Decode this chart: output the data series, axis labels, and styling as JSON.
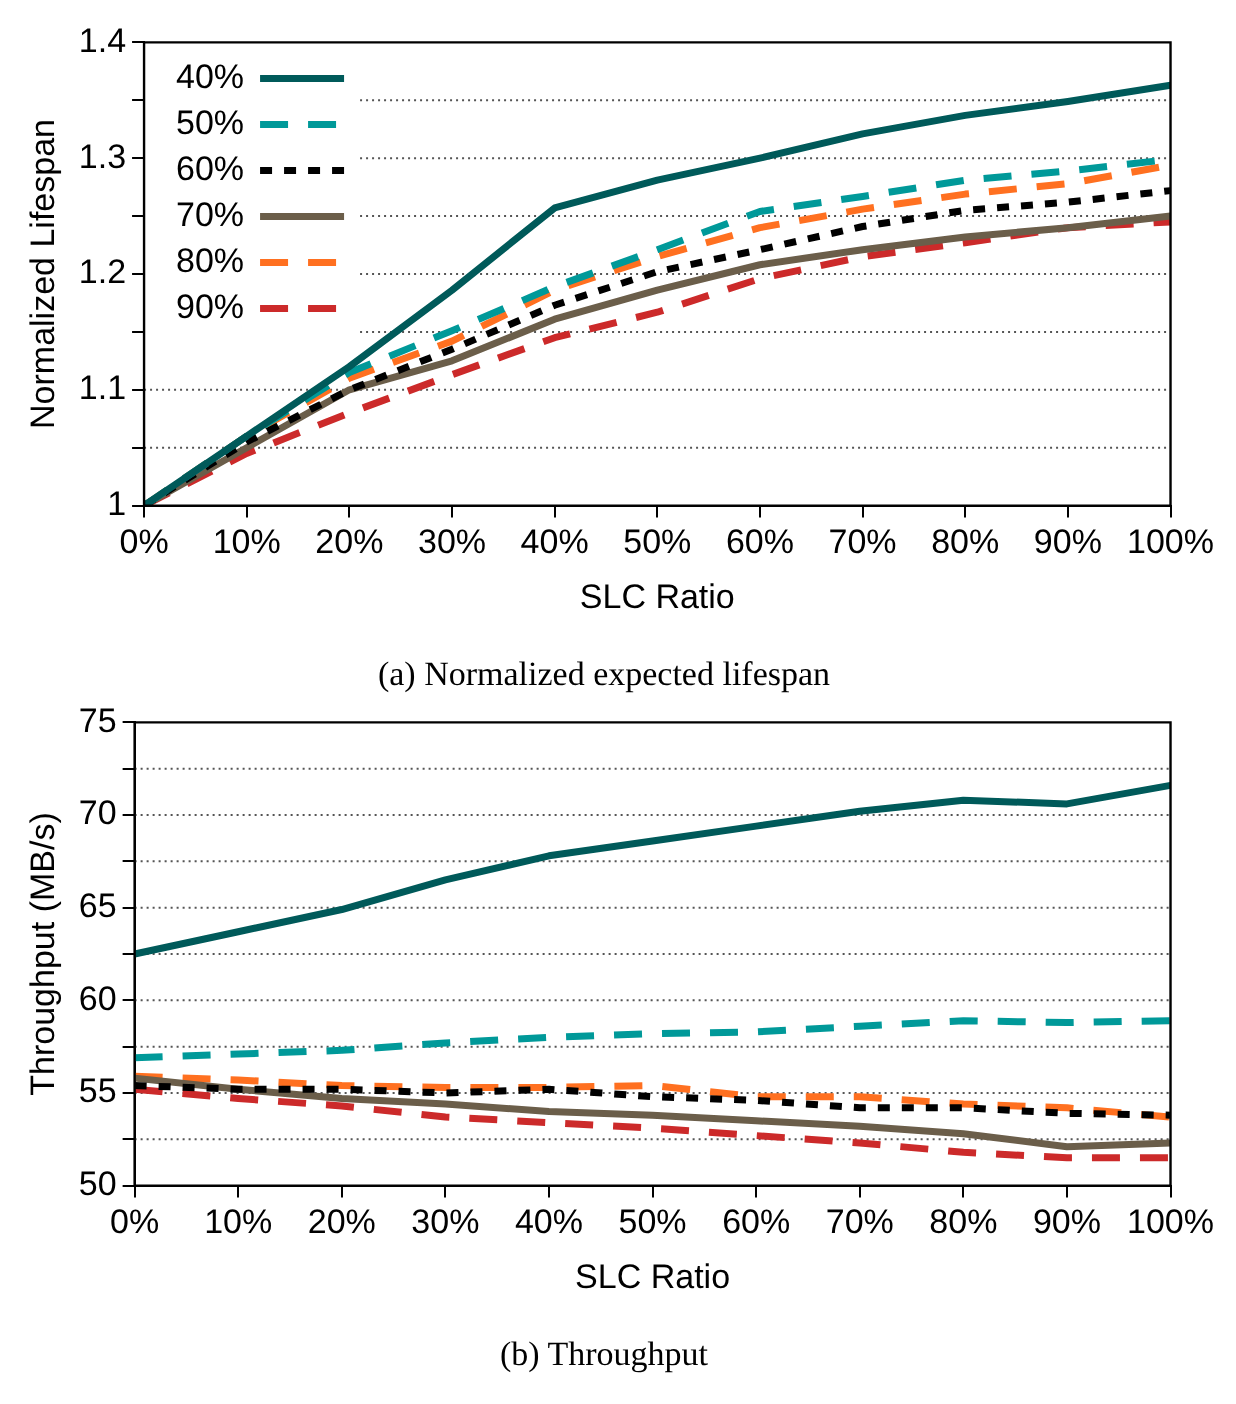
{
  "chart_data": [
    {
      "type": "line",
      "title": "(a) Normalized expected lifespan",
      "xlabel": "SLC Ratio",
      "ylabel": "Normalized Lifespan",
      "x": [
        0,
        10,
        20,
        30,
        40,
        50,
        60,
        70,
        80,
        90,
        100
      ],
      "xlim": [
        0,
        100
      ],
      "xticks": [
        {
          "value": 0,
          "label": "0%"
        },
        {
          "value": 10,
          "label": "10%"
        },
        {
          "value": 20,
          "label": "20%"
        },
        {
          "value": 30,
          "label": "30%"
        },
        {
          "value": 40,
          "label": "40%"
        },
        {
          "value": 50,
          "label": "50%"
        },
        {
          "value": 60,
          "label": "60%"
        },
        {
          "value": 70,
          "label": "70%"
        },
        {
          "value": 80,
          "label": "80%"
        },
        {
          "value": 90,
          "label": "90%"
        },
        {
          "value": 100,
          "label": "100%"
        }
      ],
      "ylim": [
        1,
        1.4
      ],
      "yticks": [
        1,
        {
          "value": 1.05,
          "label": null
        },
        1.1,
        {
          "value": 1.15,
          "label": null
        },
        1.2,
        {
          "value": 1.25,
          "label": null
        },
        1.3,
        {
          "value": 1.35,
          "label": null
        },
        1.4
      ],
      "grid": "y",
      "legend": "top left",
      "series": [
        {
          "name": "40%",
          "color": "#005a5a",
          "line_style": "solid",
          "values": [
            1.0,
            1.06,
            1.12,
            1.186,
            1.257,
            1.281,
            1.3,
            1.321,
            1.337,
            1.349,
            1.363
          ]
        },
        {
          "name": "50%",
          "color": "#009999",
          "line_style": "dashed",
          "values": [
            1.0,
            1.06,
            1.115,
            1.151,
            1.189,
            1.221,
            1.254,
            1.267,
            1.281,
            1.289,
            1.299
          ]
        },
        {
          "name": "60%",
          "color": "#000000",
          "line_style": "dotted",
          "values": [
            1.0,
            1.055,
            1.1,
            1.135,
            1.173,
            1.202,
            1.221,
            1.241,
            1.255,
            1.262,
            1.272
          ]
        },
        {
          "name": "70%",
          "color": "#6b5e4a",
          "line_style": "solid",
          "values": [
            1.0,
            1.05,
            1.1,
            1.125,
            1.161,
            1.186,
            1.208,
            1.221,
            1.232,
            1.24,
            1.25
          ]
        },
        {
          "name": "80%",
          "color": "#ff7020",
          "line_style": "dashed",
          "values": [
            1.0,
            1.06,
            1.11,
            1.142,
            1.186,
            1.215,
            1.24,
            1.256,
            1.269,
            1.278,
            1.294
          ]
        },
        {
          "name": "90%",
          "color": "#cc2a2a",
          "line_style": "dashed",
          "values": [
            1.0,
            1.045,
            1.08,
            1.113,
            1.145,
            1.167,
            1.196,
            1.215,
            1.227,
            1.24,
            1.245
          ]
        }
      ]
    },
    {
      "type": "line",
      "title": "(b) Throughput",
      "xlabel": "SLC Ratio",
      "ylabel": "Throughput (MB/s)",
      "x": [
        0,
        10,
        20,
        30,
        40,
        50,
        60,
        70,
        80,
        90,
        100
      ],
      "xlim": [
        0,
        100
      ],
      "xticks": [
        {
          "value": 0,
          "label": "0%"
        },
        {
          "value": 10,
          "label": "10%"
        },
        {
          "value": 20,
          "label": "20%"
        },
        {
          "value": 30,
          "label": "30%"
        },
        {
          "value": 40,
          "label": "40%"
        },
        {
          "value": 50,
          "label": "50%"
        },
        {
          "value": 60,
          "label": "60%"
        },
        {
          "value": 70,
          "label": "70%"
        },
        {
          "value": 80,
          "label": "80%"
        },
        {
          "value": 90,
          "label": "90%"
        },
        {
          "value": 100,
          "label": "100%"
        }
      ],
      "ylim": [
        50,
        75
      ],
      "yticks": [
        50,
        {
          "value": 52.5,
          "label": null
        },
        55,
        {
          "value": 57.5,
          "label": null
        },
        60,
        {
          "value": 62.5,
          "label": null
        },
        65,
        {
          "value": 67.5,
          "label": null
        },
        70,
        {
          "value": 72.5,
          "label": null
        },
        75
      ],
      "grid": "y",
      "series": [
        {
          "color": "#005a5a",
          "line_style": "solid",
          "values": [
            62.5,
            63.7,
            64.9,
            66.5,
            67.8,
            68.6,
            69.4,
            70.2,
            70.8,
            70.6,
            71.6
          ]
        },
        {
          "color": "#009999",
          "line_style": "dashed",
          "values": [
            56.9,
            57.1,
            57.3,
            57.7,
            58.0,
            58.2,
            58.3,
            58.6,
            58.9,
            58.8,
            58.9
          ]
        },
        {
          "color": "#000000",
          "line_style": "dotted",
          "values": [
            55.4,
            55.2,
            55.2,
            55.0,
            55.2,
            54.8,
            54.6,
            54.2,
            54.2,
            53.9,
            53.8
          ]
        },
        {
          "color": "#6b5e4a",
          "line_style": "solid",
          "values": [
            55.8,
            55.2,
            54.7,
            54.4,
            54.0,
            53.8,
            53.5,
            53.2,
            52.8,
            52.1,
            52.3
          ]
        },
        {
          "color": "#ff7020",
          "line_style": "dashed",
          "values": [
            55.9,
            55.7,
            55.4,
            55.3,
            55.3,
            55.4,
            54.8,
            54.8,
            54.4,
            54.2,
            53.7
          ]
        },
        {
          "color": "#cc2a2a",
          "line_style": "dashed",
          "values": [
            55.2,
            54.7,
            54.3,
            53.7,
            53.4,
            53.1,
            52.7,
            52.3,
            51.8,
            51.5,
            51.5
          ]
        }
      ]
    }
  ]
}
